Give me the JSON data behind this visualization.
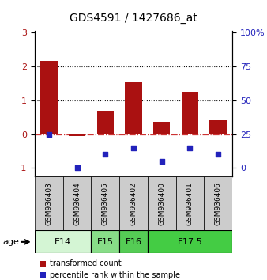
{
  "title": "GDS4591 / 1427686_at",
  "samples": [
    "GSM936403",
    "GSM936404",
    "GSM936405",
    "GSM936402",
    "GSM936400",
    "GSM936401",
    "GSM936406"
  ],
  "transformed_count": [
    2.15,
    -0.05,
    0.68,
    1.52,
    0.37,
    1.25,
    0.42
  ],
  "percentile_rank_right": [
    25,
    0,
    10,
    15,
    5,
    15,
    10
  ],
  "age_groups": [
    {
      "label": "E14",
      "start": 0,
      "end": 2,
      "color": "#d4f5d4"
    },
    {
      "label": "E15",
      "start": 2,
      "end": 3,
      "color": "#88dd88"
    },
    {
      "label": "E16",
      "start": 3,
      "end": 4,
      "color": "#55cc55"
    },
    {
      "label": "E17.5",
      "start": 4,
      "end": 7,
      "color": "#44cc44"
    }
  ],
  "ylim_left": [
    -1.25,
    3.05
  ],
  "ylim_right": [
    -4.17,
    100
  ],
  "bar_color": "#aa1111",
  "dot_color": "#2222bb",
  "zero_line_color": "#cc3333",
  "grid_color": "#111111",
  "background_color": "#ffffff",
  "sample_box_color": "#cccccc",
  "legend_bar_label": "transformed count",
  "legend_dot_label": "percentile rank within the sample",
  "age_label": "age",
  "left_yticks": [
    -1,
    0,
    1,
    2,
    3
  ],
  "right_yticks": [
    0,
    25,
    50,
    75,
    100
  ],
  "right_yticklabels": [
    "0",
    "25",
    "50",
    "75",
    "100%"
  ]
}
